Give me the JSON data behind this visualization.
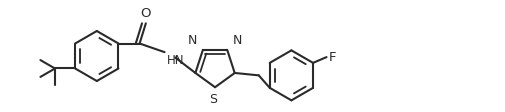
{
  "background_color": "#ffffff",
  "line_color": "#2a2a2a",
  "line_width": 1.5,
  "figsize": [
    5.06,
    1.12
  ],
  "dpi": 100,
  "xlim": [
    0,
    10.5
  ],
  "ylim": [
    0,
    2.2
  ]
}
